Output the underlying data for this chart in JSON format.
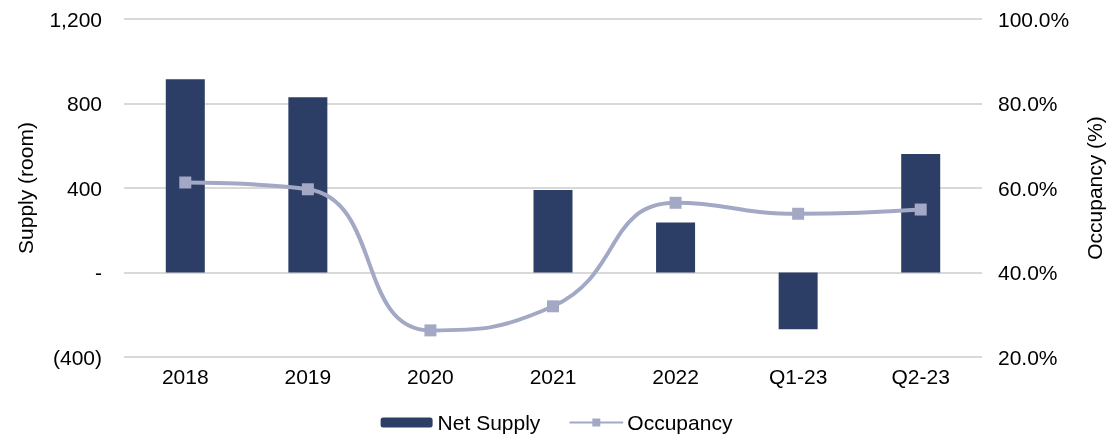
{
  "chart_data": {
    "type": "bar",
    "categories": [
      "2018",
      "2019",
      "2020",
      "2021",
      "2022",
      "Q1-23",
      "Q2-23"
    ],
    "series": [
      {
        "name": "Net Supply",
        "color": "#2c3e66",
        "values": [
          915,
          830,
          null,
          390,
          237,
          -269,
          561
        ]
      },
      {
        "name": "Occupancy",
        "type": "line",
        "axis": "y2",
        "color": "#a3a9c5",
        "values": [
          61.3,
          59.7,
          26.3,
          32.0,
          56.5,
          53.9,
          54.9
        ]
      }
    ],
    "ylabel": "Supply (room)",
    "y2label": "Occupancy (%)",
    "ylim": [
      -400,
      1200
    ],
    "yticks": [
      {
        "value": -400,
        "label": "(400)"
      },
      {
        "value": 0,
        "label": "-"
      },
      400,
      800,
      {
        "value": 1200,
        "label": "1,200"
      }
    ],
    "y2lim": [
      20,
      100
    ],
    "y2ticks": [
      {
        "value": 20,
        "label": "20.0%"
      },
      {
        "value": 40,
        "label": "40.0%"
      },
      {
        "value": 60,
        "label": "60.0%"
      },
      {
        "value": 80,
        "label": "80.0%"
      },
      {
        "value": 100,
        "label": "100.0%"
      }
    ],
    "grid": "y",
    "legend": "bottom",
    "marker": "square"
  }
}
